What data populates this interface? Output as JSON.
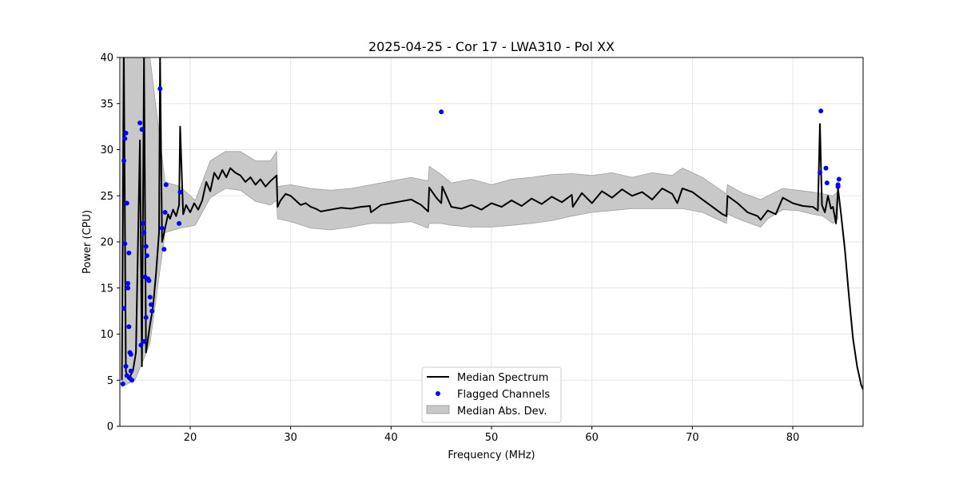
{
  "chart_data": {
    "type": "line",
    "title": "2025-04-25 - Cor 17 - LWA310 - Pol XX",
    "xlabel": "Frequency (MHz)",
    "ylabel": "Power (CPU)",
    "xlim": [
      13,
      87
    ],
    "ylim": [
      0,
      40
    ],
    "xticks": [
      20,
      30,
      40,
      50,
      60,
      70,
      80
    ],
    "yticks": [
      0,
      5,
      10,
      15,
      20,
      25,
      30,
      35,
      40
    ],
    "grid": true,
    "legend_position": "bottom-center",
    "legend": [
      "Median Spectrum",
      "Flagged Channels",
      "Median Abs. Dev."
    ],
    "colors": {
      "median": "#000000",
      "flagged": "#0000ff",
      "mad_fill": "#c8c8c8",
      "mad_edge": "#a0a0a0"
    },
    "series": [
      {
        "name": "Median Spectrum",
        "kind": "line",
        "x": [
          13.2,
          13.4,
          13.6,
          13.8,
          14.0,
          14.3,
          14.6,
          15.0,
          15.2,
          15.4,
          15.6,
          15.8,
          16.0,
          16.3,
          16.6,
          16.9,
          17.0,
          17.2,
          17.5,
          17.8,
          18.0,
          18.3,
          18.6,
          18.9,
          19.0,
          19.3,
          19.6,
          20.0,
          20.4,
          20.8,
          21.2,
          21.6,
          22.0,
          22.4,
          22.8,
          23.2,
          23.6,
          24.0,
          24.5,
          25.0,
          25.5,
          26.0,
          26.5,
          27.0,
          27.5,
          28.0,
          28.6,
          28.7,
          29.0,
          29.5,
          30.0,
          30.5,
          31.0,
          31.5,
          32.0,
          32.5,
          33.0,
          34.0,
          35.0,
          36.0,
          37.0,
          37.9,
          38.0,
          39.0,
          40.0,
          41.0,
          42.0,
          43.0,
          43.7,
          43.8,
          44.5,
          45.0,
          45.1,
          46.0,
          47.0,
          48.0,
          49.0,
          50.0,
          51.0,
          52.0,
          53.0,
          54.0,
          55.0,
          56.0,
          57.0,
          58.0,
          58.1,
          59.0,
          60.0,
          61.0,
          62.0,
          63.0,
          64.0,
          65.0,
          66.0,
          67.0,
          68.0,
          68.5,
          69.0,
          70.0,
          71.0,
          72.0,
          73.0,
          73.4,
          73.5,
          74.5,
          75.5,
          76.5,
          76.8,
          77.5,
          78.3,
          79.0,
          80.0,
          81.0,
          82.0,
          82.5,
          82.7,
          82.9,
          83.2,
          83.5,
          83.8,
          84.0,
          84.3,
          84.5,
          84.8,
          85.2,
          85.6,
          86.0,
          86.4,
          86.8,
          87.0
        ],
        "y": [
          5.0,
          40.0,
          6.0,
          5.2,
          5.4,
          6.0,
          8.0,
          31.0,
          6.5,
          40.0,
          8.0,
          9.5,
          11.0,
          13.0,
          16.5,
          21.0,
          40.0,
          20.0,
          21.5,
          23.0,
          22.5,
          23.5,
          22.8,
          24.0,
          32.5,
          23.0,
          24.0,
          23.2,
          24.2,
          23.5,
          24.5,
          26.5,
          25.5,
          27.5,
          26.8,
          27.8,
          27.0,
          28.0,
          27.5,
          27.2,
          26.5,
          27.0,
          26.2,
          26.8,
          26.0,
          26.6,
          27.2,
          23.8,
          24.5,
          25.2,
          25.0,
          24.5,
          24.0,
          24.2,
          23.8,
          23.6,
          23.3,
          23.5,
          23.7,
          23.6,
          23.8,
          23.9,
          23.2,
          24.0,
          24.2,
          24.4,
          24.6,
          24.0,
          23.3,
          25.9,
          24.8,
          24.2,
          26.0,
          23.8,
          23.6,
          24.0,
          23.5,
          24.2,
          23.8,
          24.5,
          23.9,
          24.7,
          24.1,
          24.9,
          24.3,
          25.1,
          23.8,
          25.3,
          24.2,
          25.5,
          24.8,
          25.7,
          25.0,
          25.4,
          24.6,
          25.8,
          25.2,
          24.2,
          25.8,
          25.4,
          24.6,
          23.8,
          23.0,
          22.8,
          25.0,
          24.2,
          23.2,
          22.8,
          22.4,
          23.4,
          23.0,
          24.8,
          24.2,
          23.9,
          23.8,
          23.4,
          32.8,
          24.0,
          23.2,
          25.0,
          23.6,
          23.8,
          22.0,
          25.8,
          23.0,
          19.0,
          14.0,
          9.5,
          6.5,
          4.5,
          4.0
        ]
      },
      {
        "name": "Median Abs. Dev.",
        "kind": "band",
        "x": [
          13.2,
          14.5,
          16.0,
          17.5,
          19.0,
          20.5,
          22.0,
          23.5,
          25.0,
          26.5,
          28.0,
          28.6,
          28.7,
          30.0,
          32.0,
          34.0,
          36.0,
          38.0,
          40.0,
          42.0,
          43.7,
          43.8,
          45.0,
          46.0,
          48.0,
          50.0,
          52.0,
          54.0,
          56.0,
          58.0,
          60.0,
          62.0,
          64.0,
          66.0,
          68.0,
          69.0,
          71.0,
          73.4,
          73.5,
          75.0,
          76.8,
          77.5,
          79.0,
          80.5,
          82.0,
          83.0,
          84.0,
          84.5
        ],
        "lower": [
          4.3,
          5.0,
          9.0,
          21.0,
          21.5,
          21.8,
          24.8,
          25.8,
          25.6,
          24.4,
          24.0,
          24.5,
          22.5,
          22.2,
          21.5,
          21.3,
          21.6,
          22.0,
          22.0,
          22.2,
          21.5,
          22.0,
          22.0,
          21.8,
          21.6,
          21.6,
          21.8,
          22.0,
          22.3,
          22.8,
          23.2,
          23.4,
          23.6,
          23.6,
          23.6,
          23.6,
          23.2,
          22.0,
          23.0,
          22.3,
          21.6,
          22.5,
          23.5,
          23.4,
          23.0,
          22.8,
          22.0,
          22.5
        ],
        "upper": [
          40.0,
          40.0,
          40.0,
          26.5,
          26.0,
          24.5,
          28.8,
          29.8,
          29.8,
          28.8,
          28.8,
          29.8,
          26.0,
          26.2,
          25.8,
          25.6,
          25.8,
          26.2,
          26.6,
          27.0,
          26.6,
          28.2,
          27.3,
          26.4,
          26.8,
          26.2,
          26.8,
          27.0,
          27.3,
          27.4,
          27.2,
          27.5,
          27.0,
          27.5,
          27.2,
          28.0,
          27.0,
          25.2,
          26.2,
          25.3,
          24.6,
          25.0,
          25.8,
          25.6,
          25.4,
          25.2,
          25.0,
          25.5
        ]
      },
      {
        "name": "Flagged Channels",
        "kind": "scatter",
        "x": [
          13.3,
          13.4,
          13.5,
          13.6,
          13.7,
          13.8,
          13.9,
          14.0,
          14.1,
          14.2,
          13.5,
          13.6,
          13.7,
          13.9,
          14.1,
          13.4,
          13.8,
          14.0,
          15.0,
          15.2,
          15.3,
          15.4,
          15.5,
          15.6,
          15.7,
          15.8,
          15.9,
          16.0,
          16.1,
          16.2,
          15.1,
          15.4,
          15.6,
          17.0,
          17.2,
          17.4,
          17.5,
          17.6,
          18.9,
          19.0,
          45.0,
          82.7,
          82.8,
          83.3,
          83.4,
          84.5,
          84.6,
          84.5
        ],
        "y": [
          4.6,
          12.8,
          31.2,
          31.8,
          24.2,
          15.5,
          10.8,
          8.0,
          6.0,
          5.0,
          19.8,
          6.5,
          5.5,
          18.8,
          7.8,
          28.8,
          15.0,
          5.2,
          32.9,
          32.2,
          22.0,
          21.0,
          16.2,
          19.5,
          18.5,
          16.0,
          15.8,
          14.0,
          13.2,
          12.5,
          8.8,
          9.2,
          11.8,
          36.6,
          21.5,
          19.2,
          23.2,
          26.2,
          22.0,
          25.4,
          34.1,
          27.5,
          34.2,
          28.0,
          26.4,
          26.2,
          26.8,
          26.0
        ]
      }
    ]
  }
}
